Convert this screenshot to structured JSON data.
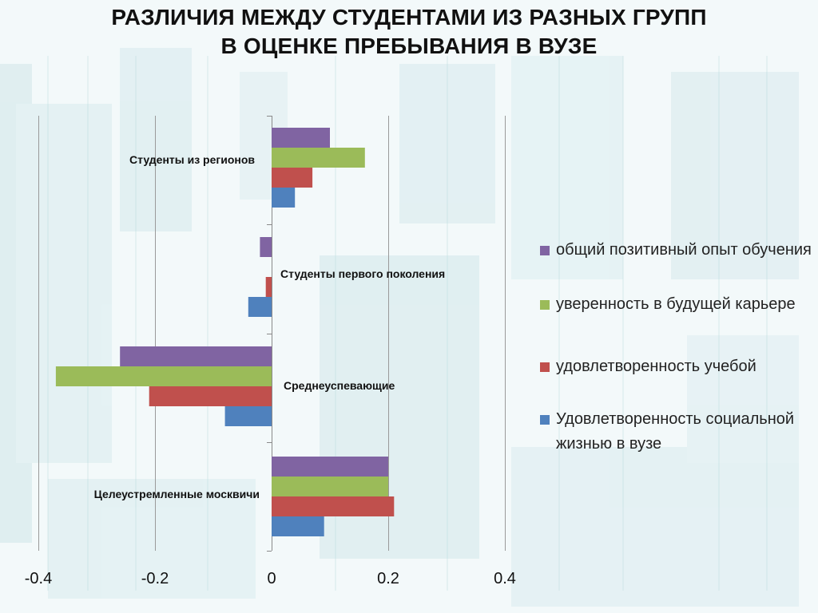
{
  "title": {
    "line1": "РАЗЛИЧИЯ МЕЖДУ СТУДЕНТАМИ ИЗ РАЗНЫХ ГРУПП",
    "line2": "В ОЦЕНКЕ ПРЕБЫВАНИЯ В ВУЗЕ"
  },
  "colors": {
    "background": "#f3f9fa",
    "purple": "#8064a2",
    "green": "#9bbb59",
    "red": "#c0504d",
    "blue": "#4f81bd"
  },
  "chart_data": {
    "type": "bar",
    "orientation": "horizontal",
    "categories": [
      "Студенты из регионов",
      "Студенты первого поколения",
      "Среднеуспевающие",
      "Целеустремленные москвичи"
    ],
    "series": [
      {
        "name": "общий позитивный опыт обучения",
        "color": "#8064a2",
        "values": [
          0.1,
          -0.02,
          -0.26,
          0.2
        ]
      },
      {
        "name": "уверенность в будущей карьере",
        "color": "#9bbb59",
        "values": [
          0.16,
          0.0,
          -0.37,
          0.2
        ]
      },
      {
        "name": "удовлетворенность учебой",
        "color": "#c0504d",
        "values": [
          0.07,
          -0.01,
          -0.21,
          0.21
        ]
      },
      {
        "name": "Удовлетворенность социальной жизнью в вузе",
        "color": "#4f81bd",
        "values": [
          0.04,
          -0.04,
          -0.08,
          0.09
        ]
      }
    ],
    "xlim": [
      -0.4,
      0.4
    ],
    "xticks": [
      "-0.4",
      "-0.2",
      "0",
      "0.2",
      "0.4"
    ],
    "grid": true,
    "legend_position": "right"
  }
}
